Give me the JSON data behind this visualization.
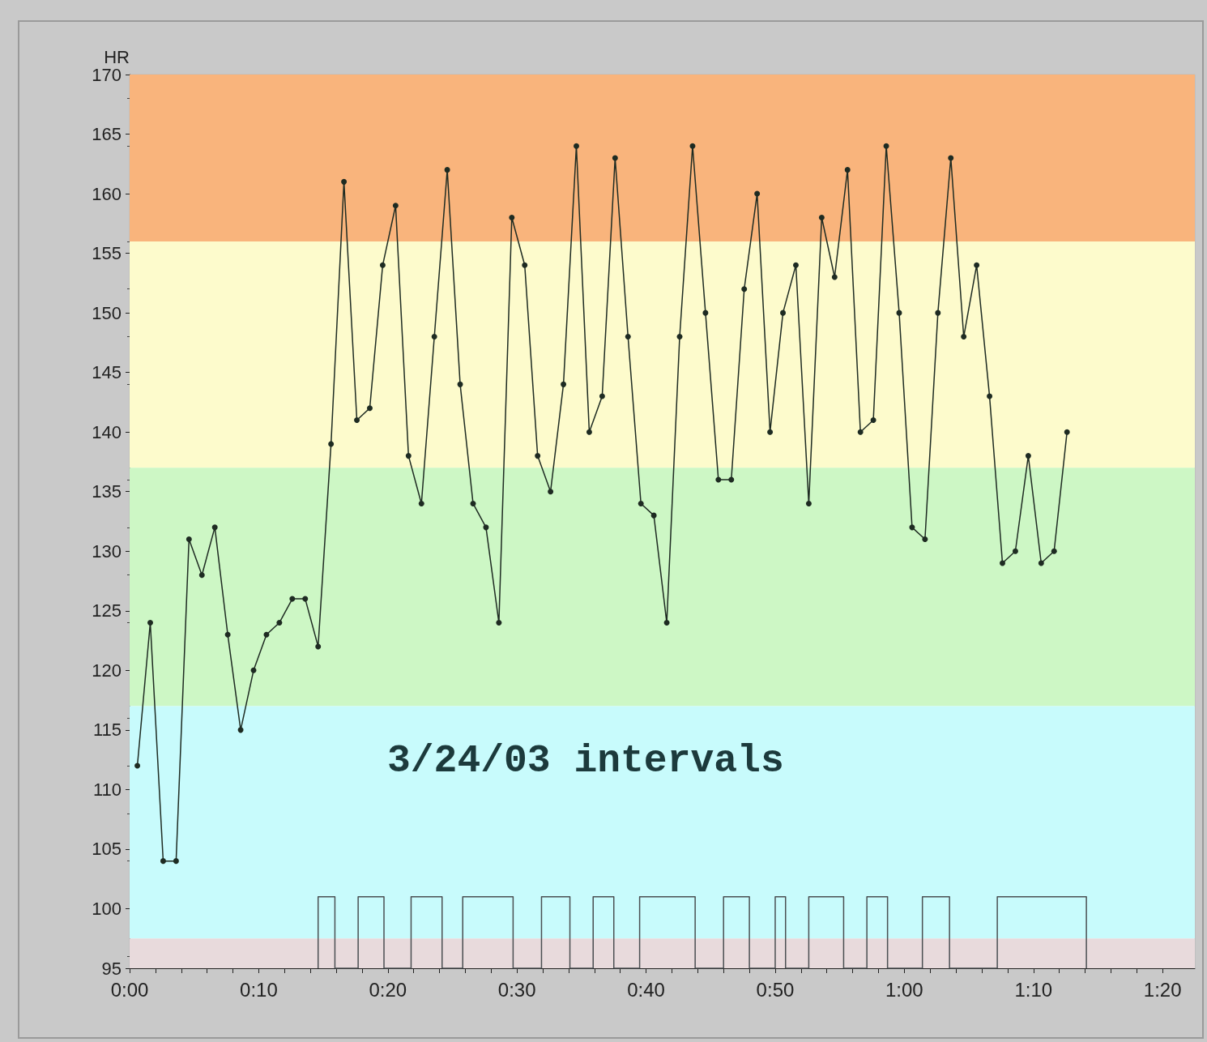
{
  "chart_data": {
    "type": "line",
    "ylabel": "HR",
    "annotations": [
      "3/24/03 intervals"
    ],
    "xlim": [
      0,
      82.5
    ],
    "xticks": [
      {
        "value": 0,
        "label": "0:00"
      },
      {
        "value": 2,
        "label": null
      },
      {
        "value": 4,
        "label": null
      },
      {
        "value": 6,
        "label": null
      },
      {
        "value": 8,
        "label": null
      },
      {
        "value": 10,
        "label": "0:10"
      },
      {
        "value": 12,
        "label": null
      },
      {
        "value": 14,
        "label": null
      },
      {
        "value": 16,
        "label": null
      },
      {
        "value": 18,
        "label": null
      },
      {
        "value": 20,
        "label": "0:20"
      },
      {
        "value": 22,
        "label": null
      },
      {
        "value": 24,
        "label": null
      },
      {
        "value": 26,
        "label": null
      },
      {
        "value": 28,
        "label": null
      },
      {
        "value": 30,
        "label": "0:30"
      },
      {
        "value": 32,
        "label": null
      },
      {
        "value": 34,
        "label": null
      },
      {
        "value": 36,
        "label": null
      },
      {
        "value": 38,
        "label": null
      },
      {
        "value": 40,
        "label": "0:40"
      },
      {
        "value": 42,
        "label": null
      },
      {
        "value": 44,
        "label": null
      },
      {
        "value": 46,
        "label": null
      },
      {
        "value": 48,
        "label": null
      },
      {
        "value": 50,
        "label": "0:50"
      },
      {
        "value": 52,
        "label": null
      },
      {
        "value": 54,
        "label": null
      },
      {
        "value": 56,
        "label": null
      },
      {
        "value": 58,
        "label": null
      },
      {
        "value": 60,
        "label": "1:00"
      },
      {
        "value": 62,
        "label": null
      },
      {
        "value": 64,
        "label": null
      },
      {
        "value": 66,
        "label": null
      },
      {
        "value": 68,
        "label": null
      },
      {
        "value": 70,
        "label": "1:10"
      },
      {
        "value": 72,
        "label": null
      },
      {
        "value": 74,
        "label": null
      },
      {
        "value": 76,
        "label": null
      },
      {
        "value": 78,
        "label": null
      },
      {
        "value": 80,
        "label": "1:20"
      }
    ],
    "ylim": [
      95,
      170
    ],
    "yticks": [
      95,
      100,
      105,
      110,
      115,
      120,
      125,
      130,
      135,
      140,
      145,
      150,
      155,
      160,
      165,
      170
    ],
    "grid": false,
    "marker": "circle",
    "line_style": "solid",
    "bands": [
      {
        "axis": "y",
        "from": 156,
        "to": 170,
        "color": "#f9b47c"
      },
      {
        "axis": "y",
        "from": 137,
        "to": 156,
        "color": "#fdfbcc"
      },
      {
        "axis": "y",
        "from": 117,
        "to": 137,
        "color": "#cdf7c5"
      },
      {
        "axis": "y",
        "from": 97.5,
        "to": 117,
        "color": "#c8fbfc"
      },
      {
        "axis": "y",
        "from": 95,
        "to": 97.5,
        "color": "#e8dadc"
      }
    ],
    "series": [
      {
        "color": "#1e2b22",
        "x": [
          0.6,
          1.6,
          2.6,
          3.6,
          4.6,
          5.6,
          6.6,
          7.6,
          8.6,
          9.6,
          10.6,
          11.6,
          12.6,
          13.6,
          14.6,
          15.6,
          16.6,
          17.6,
          18.6,
          19.6,
          20.6,
          21.6,
          22.6,
          23.6,
          24.6,
          25.6,
          26.6,
          27.6,
          28.6,
          29.6,
          30.6,
          31.6,
          32.6,
          33.6,
          34.6,
          35.6,
          36.6,
          37.6,
          38.6,
          39.6,
          40.6,
          41.6,
          42.6,
          43.6,
          44.6,
          45.6,
          46.6,
          47.6,
          48.6,
          49.6,
          50.6,
          51.6,
          52.6,
          53.6,
          54.6,
          55.6,
          56.6,
          57.6,
          58.6,
          59.6,
          60.6,
          61.6,
          62.6,
          63.6,
          64.6,
          65.6,
          66.6,
          67.6,
          68.6,
          69.6,
          70.6,
          71.6,
          72.6
        ],
        "values": [
          112,
          124,
          104,
          104,
          131,
          128,
          132,
          123,
          115,
          120,
          123,
          124,
          126,
          126,
          122,
          139,
          161,
          141,
          142,
          154,
          159,
          138,
          134,
          148,
          162,
          144,
          134,
          132,
          124,
          158,
          154,
          138,
          135,
          144,
          164,
          140,
          143,
          163,
          148,
          134,
          133,
          124,
          148,
          164,
          150,
          136,
          136,
          152,
          160,
          140,
          150,
          154,
          134,
          158,
          153,
          162,
          140,
          141,
          164,
          150,
          132,
          131,
          150,
          163,
          148,
          154,
          143,
          129,
          130,
          138,
          129,
          130,
          140
        ]
      },
      {
        "color": "#4a4f52",
        "marker": "none",
        "x": [
          14.6,
          14.6,
          15.9,
          15.9,
          17.7,
          17.7,
          19.7,
          19.7,
          21.8,
          21.8,
          24.2,
          24.2,
          25.8,
          25.8,
          29.7,
          29.7,
          31.9,
          31.9,
          34.1,
          34.1,
          35.9,
          35.9,
          37.5,
          37.5,
          39.5,
          39.5,
          43.8,
          43.8,
          46.0,
          46.0,
          48.0,
          48.0,
          50.0,
          50.0,
          50.8,
          50.8,
          52.6,
          52.6,
          55.3,
          55.3,
          57.1,
          57.1,
          58.7,
          58.7,
          61.4,
          61.4,
          63.5,
          63.5,
          67.2,
          67.2,
          74.1,
          74.1
        ],
        "values": [
          95,
          101,
          101,
          95,
          95,
          101,
          101,
          95,
          95,
          101,
          101,
          95,
          95,
          101,
          101,
          95,
          95,
          101,
          101,
          95,
          95,
          101,
          101,
          95,
          95,
          101,
          101,
          95,
          95,
          101,
          101,
          95,
          95,
          101,
          101,
          95,
          95,
          101,
          101,
          95,
          95,
          101,
          101,
          95,
          95,
          101,
          101,
          95,
          95,
          101,
          101,
          95
        ]
      }
    ]
  }
}
